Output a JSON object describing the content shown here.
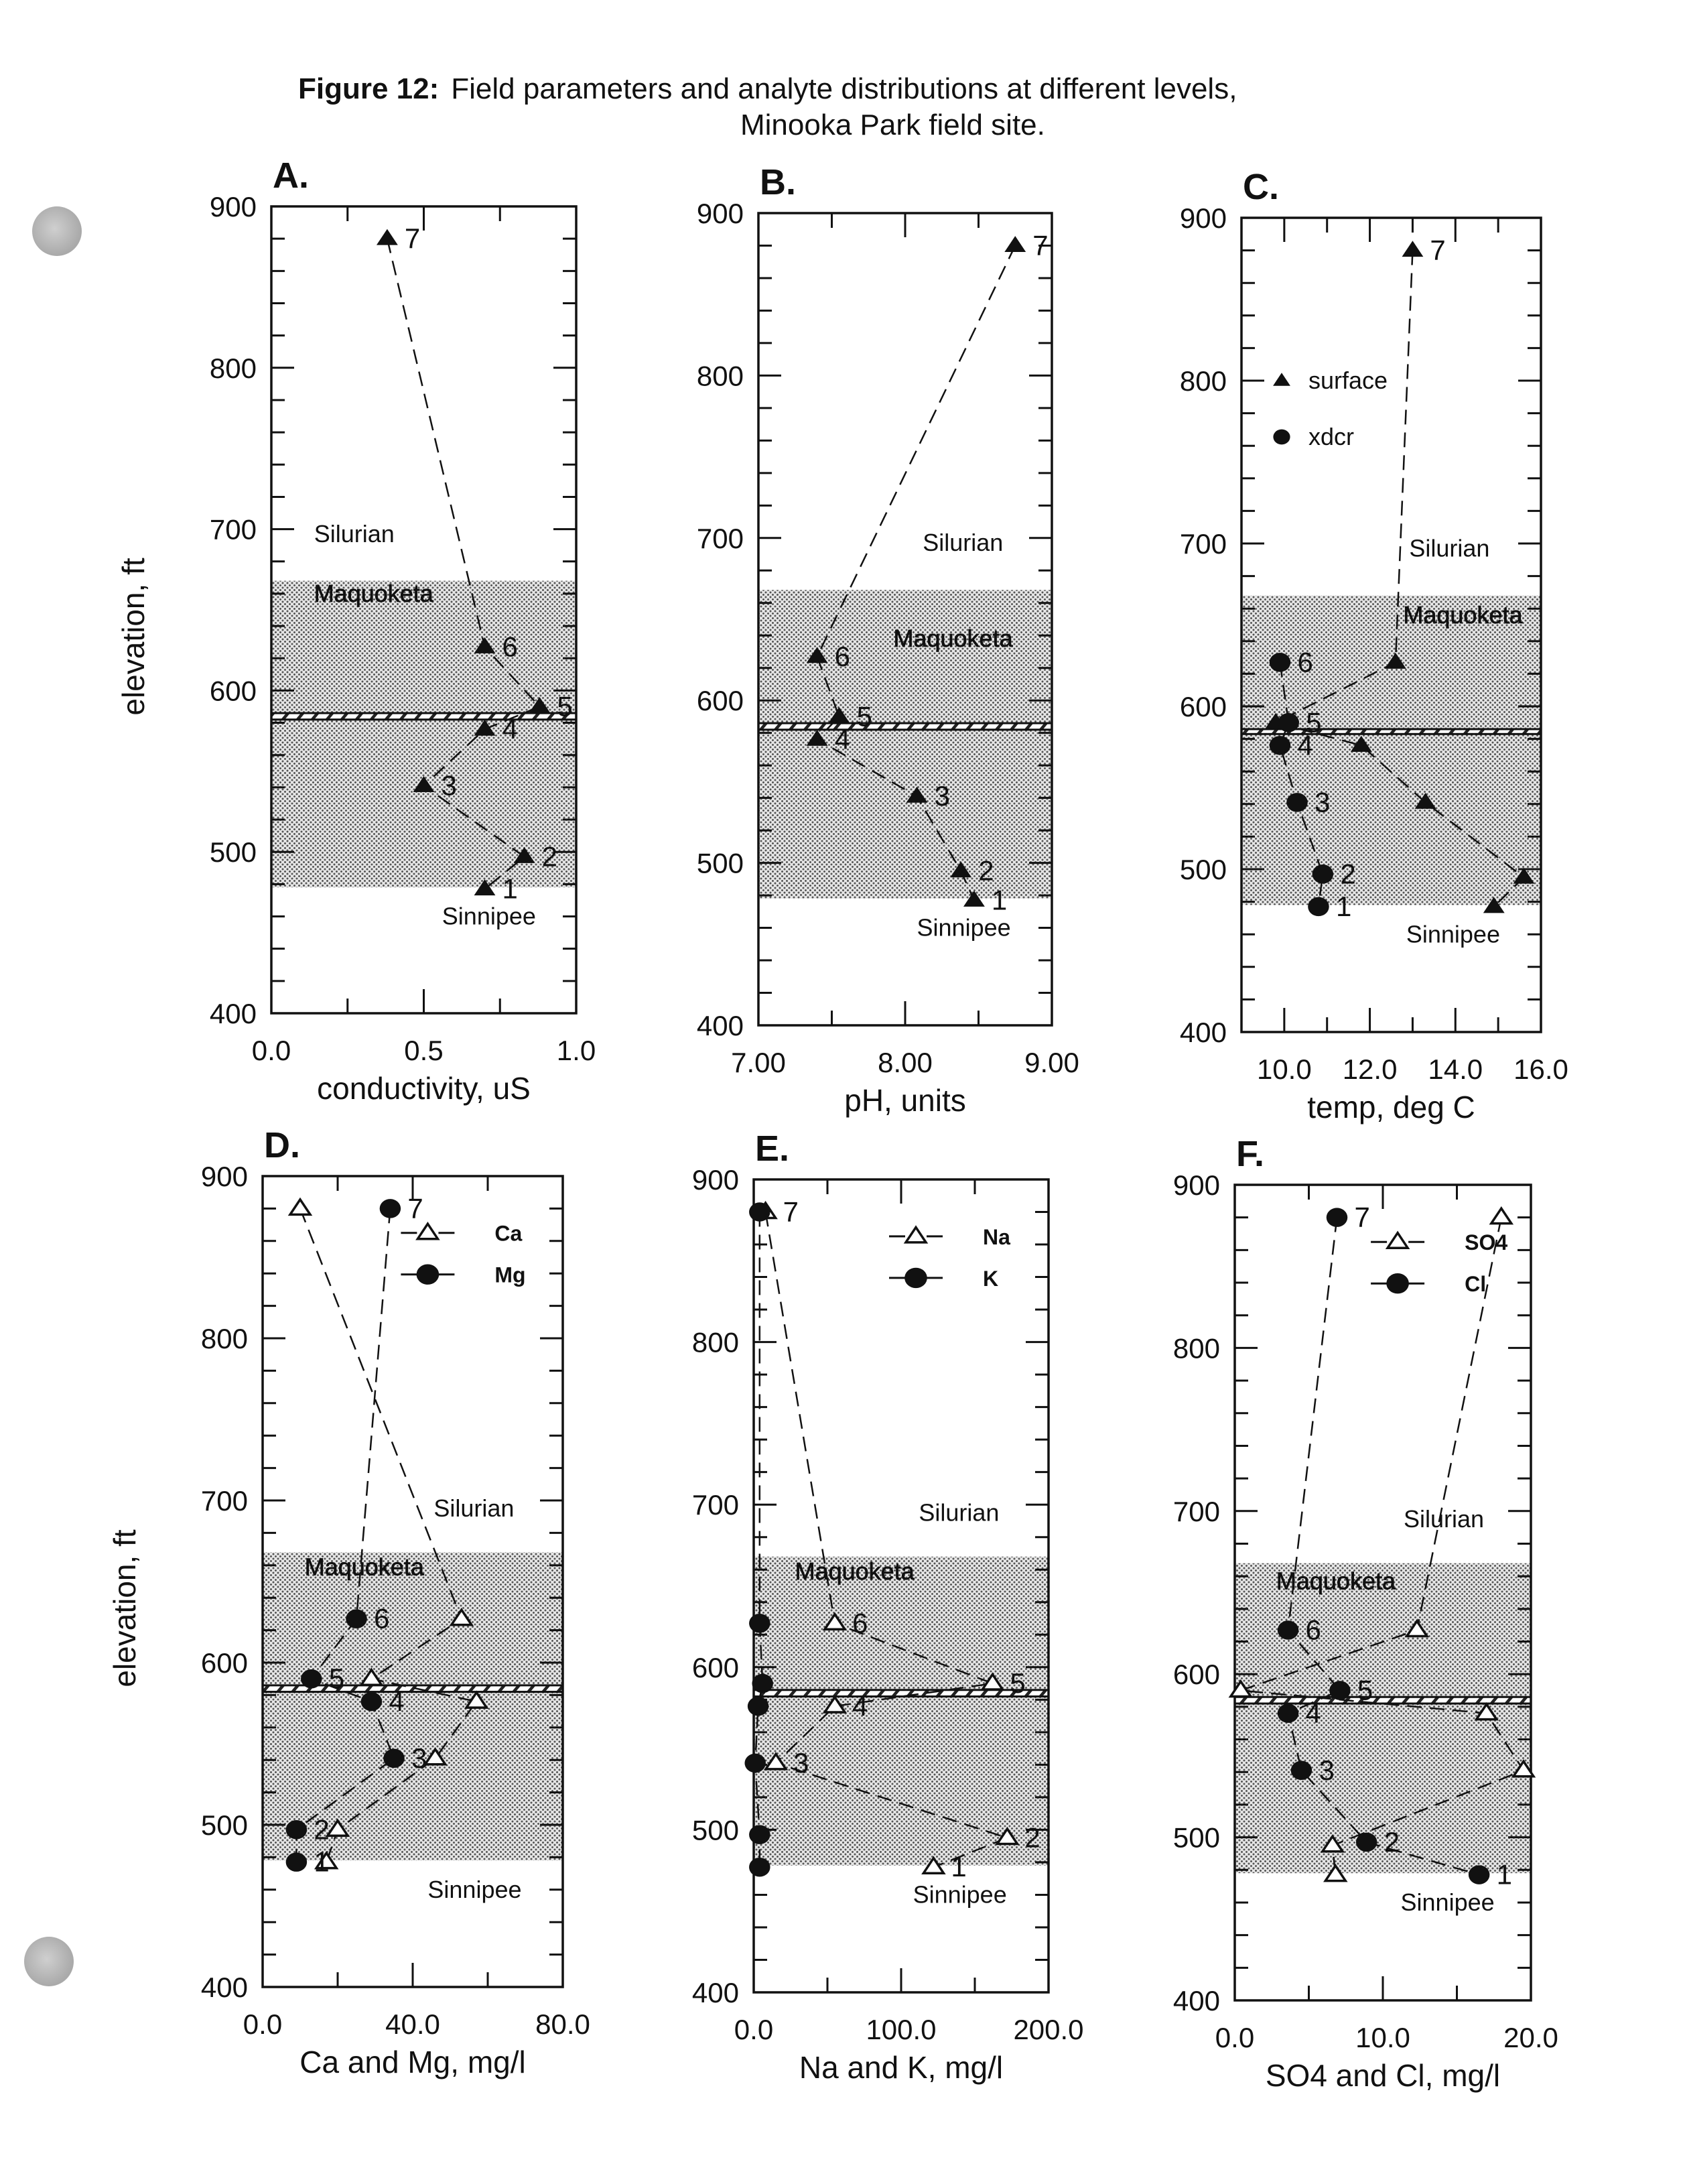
{
  "figure": {
    "title_prefix": "Figure 12:",
    "title_main": "Field parameters and analyte distributions at different levels,",
    "title_line2": "Minooka Park field site."
  },
  "colors": {
    "ink": "#111111",
    "shade": "#c8c8c8",
    "punch_hole": "#b8b8b8"
  },
  "chart_data": [
    {
      "id": "A",
      "panel_label": "A.",
      "type": "line",
      "xlabel": "conductivity, uS",
      "ylabel": "elevation, ft",
      "xlim": [
        0.0,
        1.0
      ],
      "ylim": [
        400,
        900
      ],
      "xticks": [
        0.0,
        0.5,
        1.0
      ],
      "xtick_labels": [
        "0.0",
        "0.5",
        "1.0"
      ],
      "yticks": [
        400,
        500,
        600,
        700,
        800,
        900
      ],
      "ytick_labels": [
        "400",
        "500",
        "600",
        "700",
        "800",
        "900"
      ],
      "units": [
        {
          "name": "Silurian",
          "elev": 692,
          "xfrac": 0.14
        },
        {
          "name": "Maquoketa",
          "elev": 655,
          "xfrac": 0.14,
          "shaded_text": true
        },
        {
          "name": "Sinnipee",
          "elev": 455,
          "xfrac": 0.56
        }
      ],
      "shaded_range": [
        478,
        668
      ],
      "hatch_range": [
        582,
        586
      ],
      "legend": [],
      "series": [
        {
          "name": "surface",
          "marker": "filled-triangle",
          "points": [
            {
              "label": "7",
              "x": 0.38,
              "y": 880
            },
            {
              "label": "6",
              "x": 0.7,
              "y": 627
            },
            {
              "label": "5",
              "x": 0.88,
              "y": 590
            },
            {
              "label": "4",
              "x": 0.7,
              "y": 576
            },
            {
              "label": "3",
              "x": 0.5,
              "y": 541
            },
            {
              "label": "2",
              "x": 0.83,
              "y": 497
            },
            {
              "label": "1",
              "x": 0.7,
              "y": 477
            }
          ]
        }
      ]
    },
    {
      "id": "B",
      "panel_label": "B.",
      "type": "line",
      "xlabel": "pH, units",
      "ylabel": "",
      "xlim": [
        7.0,
        9.0
      ],
      "ylim": [
        400,
        900
      ],
      "xticks": [
        7.0,
        8.0,
        9.0
      ],
      "xtick_labels": [
        "7.00",
        "8.00",
        "9.00"
      ],
      "yticks": [
        400,
        500,
        600,
        700,
        800,
        900
      ],
      "ytick_labels": [
        "400",
        "500",
        "600",
        "700",
        "800",
        "900"
      ],
      "units": [
        {
          "name": "Silurian",
          "elev": 692,
          "xfrac": 0.56
        },
        {
          "name": "Maquoketa",
          "elev": 633,
          "xfrac": 0.46,
          "shaded_text": true
        },
        {
          "name": "Sinnipee",
          "elev": 455,
          "xfrac": 0.54
        }
      ],
      "shaded_range": [
        478,
        668
      ],
      "hatch_range": [
        582,
        586
      ],
      "legend": [],
      "series": [
        {
          "name": "surface",
          "marker": "filled-triangle",
          "points": [
            {
              "label": "7",
              "x": 8.75,
              "y": 880
            },
            {
              "label": "6",
              "x": 7.4,
              "y": 627
            },
            {
              "label": "5",
              "x": 7.55,
              "y": 590
            },
            {
              "label": "4",
              "x": 7.4,
              "y": 576
            },
            {
              "label": "3",
              "x": 8.08,
              "y": 541
            },
            {
              "label": "2",
              "x": 8.38,
              "y": 495
            },
            {
              "label": "1",
              "x": 8.47,
              "y": 477
            }
          ]
        }
      ]
    },
    {
      "id": "C",
      "panel_label": "C.",
      "type": "line",
      "xlabel": "temp, deg C",
      "ylabel": "",
      "xlim": [
        9.0,
        16.0
      ],
      "ylim": [
        400,
        900
      ],
      "xticks": [
        10.0,
        12.0,
        14.0,
        16.0
      ],
      "xtick_labels": [
        "10.0",
        "12.0",
        "14.0",
        "16.0"
      ],
      "yticks": [
        400,
        500,
        600,
        700,
        800,
        900
      ],
      "ytick_labels": [
        "400",
        "500",
        "600",
        "700",
        "800",
        "900"
      ],
      "units": [
        {
          "name": "Silurian",
          "elev": 692,
          "xfrac": 0.56
        },
        {
          "name": "Maquoketa",
          "elev": 651,
          "xfrac": 0.54,
          "shaded_text": true
        },
        {
          "name": "Sinnipee",
          "elev": 455,
          "xfrac": 0.55
        }
      ],
      "shaded_range": [
        478,
        668
      ],
      "hatch_range": [
        583,
        586
      ],
      "legend": [
        {
          "name": "surface",
          "marker": "filled-triangle"
        },
        {
          "name": "xdcr",
          "marker": "filled-circle"
        }
      ],
      "series": [
        {
          "name": "surface",
          "marker": "filled-triangle",
          "points": [
            {
              "label": "7",
              "x": 13.0,
              "y": 880
            },
            {
              "label": "",
              "x": 12.6,
              "y": 627
            },
            {
              "label": "",
              "x": 9.8,
              "y": 590
            },
            {
              "label": "",
              "x": 11.8,
              "y": 576
            },
            {
              "label": "",
              "x": 13.3,
              "y": 541
            },
            {
              "label": "",
              "x": 15.6,
              "y": 495
            },
            {
              "label": "",
              "x": 14.9,
              "y": 477
            }
          ]
        },
        {
          "name": "xdcr",
          "marker": "filled-circle",
          "points": [
            {
              "label": "6",
              "x": 9.9,
              "y": 627
            },
            {
              "label": "5",
              "x": 10.1,
              "y": 590
            },
            {
              "label": "4",
              "x": 9.9,
              "y": 576
            },
            {
              "label": "3",
              "x": 10.3,
              "y": 541
            },
            {
              "label": "2",
              "x": 10.9,
              "y": 497
            },
            {
              "label": "1",
              "x": 10.8,
              "y": 477
            }
          ]
        }
      ]
    },
    {
      "id": "D",
      "panel_label": "D.",
      "type": "line",
      "xlabel": "Ca and Mg, mg/l",
      "ylabel": "elevation, ft",
      "xlim": [
        0.0,
        80.0
      ],
      "ylim": [
        400,
        900
      ],
      "xticks": [
        0.0,
        40.0,
        80.0
      ],
      "xtick_labels": [
        "0.0",
        "40.0",
        "80.0"
      ],
      "yticks": [
        400,
        500,
        600,
        700,
        800,
        900
      ],
      "ytick_labels": [
        "400",
        "500",
        "600",
        "700",
        "800",
        "900"
      ],
      "units": [
        {
          "name": "Silurian",
          "elev": 690,
          "xfrac": 0.57
        },
        {
          "name": "Maquoketa",
          "elev": 654,
          "xfrac": 0.14,
          "shaded_text": true
        },
        {
          "name": "Sinnipee",
          "elev": 455,
          "xfrac": 0.55
        }
      ],
      "shaded_range": [
        478,
        668
      ],
      "hatch_range": [
        582,
        586
      ],
      "legend": [
        {
          "name": "Ca",
          "marker": "open-triangle"
        },
        {
          "name": "Mg",
          "marker": "filled-circle"
        }
      ],
      "series": [
        {
          "name": "Ca",
          "marker": "open-triangle",
          "points": [
            {
              "label": "",
              "x": 10,
              "y": 880
            },
            {
              "label": "",
              "x": 53,
              "y": 627
            },
            {
              "label": "",
              "x": 29,
              "y": 590
            },
            {
              "label": "",
              "x": 57,
              "y": 576
            },
            {
              "label": "",
              "x": 46,
              "y": 541
            },
            {
              "label": "",
              "x": 20,
              "y": 497
            },
            {
              "label": "",
              "x": 17,
              "y": 477
            }
          ]
        },
        {
          "name": "Mg",
          "marker": "filled-circle",
          "points": [
            {
              "label": "7",
              "x": 34,
              "y": 880
            },
            {
              "label": "6",
              "x": 25,
              "y": 627
            },
            {
              "label": "5",
              "x": 13,
              "y": 590
            },
            {
              "label": "4",
              "x": 29,
              "y": 576
            },
            {
              "label": "3",
              "x": 35,
              "y": 541
            },
            {
              "label": "2",
              "x": 9,
              "y": 497
            },
            {
              "label": "1",
              "x": 9,
              "y": 477
            }
          ]
        }
      ]
    },
    {
      "id": "E",
      "panel_label": "E.",
      "type": "line",
      "xlabel": "Na and K, mg/l",
      "ylabel": "",
      "xlim": [
        0.0,
        200.0
      ],
      "ylim": [
        400,
        900
      ],
      "xticks": [
        0.0,
        100.0,
        200.0
      ],
      "xtick_labels": [
        "0.0",
        "100.0",
        "200.0"
      ],
      "yticks": [
        400,
        500,
        600,
        700,
        800,
        900
      ],
      "ytick_labels": [
        "400",
        "500",
        "600",
        "700",
        "800",
        "900"
      ],
      "units": [
        {
          "name": "Silurian",
          "elev": 690,
          "xfrac": 0.56
        },
        {
          "name": "Maquoketa",
          "elev": 654,
          "xfrac": 0.14,
          "shaded_text": true
        },
        {
          "name": "Sinnipee",
          "elev": 455,
          "xfrac": 0.54
        }
      ],
      "shaded_range": [
        478,
        668
      ],
      "hatch_range": [
        582,
        586
      ],
      "legend": [
        {
          "name": "Na",
          "marker": "open-triangle"
        },
        {
          "name": "K",
          "marker": "filled-circle"
        }
      ],
      "series": [
        {
          "name": "Na",
          "marker": "open-triangle",
          "points": [
            {
              "label": "7",
              "x": 8,
              "y": 880
            },
            {
              "label": "6",
              "x": 55,
              "y": 627
            },
            {
              "label": "5",
              "x": 162,
              "y": 590
            },
            {
              "label": "4",
              "x": 55,
              "y": 576
            },
            {
              "label": "3",
              "x": 15,
              "y": 541
            },
            {
              "label": "2",
              "x": 172,
              "y": 495
            },
            {
              "label": "1",
              "x": 122,
              "y": 477
            }
          ]
        },
        {
          "name": "K",
          "marker": "filled-circle",
          "points": [
            {
              "label": "",
              "x": 4,
              "y": 880
            },
            {
              "label": "",
              "x": 4,
              "y": 627
            },
            {
              "label": "",
              "x": 6,
              "y": 590
            },
            {
              "label": "",
              "x": 3,
              "y": 576
            },
            {
              "label": "",
              "x": 1,
              "y": 541
            },
            {
              "label": "",
              "x": 4,
              "y": 497
            },
            {
              "label": "",
              "x": 4,
              "y": 477
            }
          ]
        }
      ]
    },
    {
      "id": "F",
      "panel_label": "F.",
      "type": "line",
      "xlabel": "SO4 and Cl, mg/l",
      "ylabel": "",
      "xlim": [
        0.0,
        20.0
      ],
      "ylim": [
        400,
        900
      ],
      "xticks": [
        0.0,
        10.0,
        20.0
      ],
      "xtick_labels": [
        "0.0",
        "10.0",
        "20.0"
      ],
      "yticks": [
        400,
        500,
        600,
        700,
        800,
        900
      ],
      "ytick_labels": [
        "400",
        "500",
        "600",
        "700",
        "800",
        "900"
      ],
      "units": [
        {
          "name": "Silurian",
          "elev": 690,
          "xfrac": 0.57
        },
        {
          "name": "Maquoketa",
          "elev": 652,
          "xfrac": 0.14,
          "shaded_text": true
        },
        {
          "name": "Sinnipee",
          "elev": 455,
          "xfrac": 0.56
        }
      ],
      "shaded_range": [
        478,
        668
      ],
      "hatch_range": [
        582,
        586
      ],
      "legend": [
        {
          "name": "SO4",
          "marker": "open-triangle"
        },
        {
          "name": "Cl",
          "marker": "filled-circle"
        }
      ],
      "series": [
        {
          "name": "SO4",
          "marker": "open-triangle",
          "points": [
            {
              "label": "",
              "x": 18.0,
              "y": 880
            },
            {
              "label": "",
              "x": 12.3,
              "y": 627
            },
            {
              "label": "",
              "x": 0.4,
              "y": 590
            },
            {
              "label": "",
              "x": 17.0,
              "y": 576
            },
            {
              "label": "",
              "x": 19.5,
              "y": 541
            },
            {
              "label": "",
              "x": 6.6,
              "y": 495
            },
            {
              "label": "",
              "x": 6.8,
              "y": 477
            }
          ]
        },
        {
          "name": "Cl",
          "marker": "filled-circle",
          "points": [
            {
              "label": "7",
              "x": 6.9,
              "y": 880
            },
            {
              "label": "6",
              "x": 3.6,
              "y": 627
            },
            {
              "label": "5",
              "x": 7.1,
              "y": 590
            },
            {
              "label": "4",
              "x": 3.6,
              "y": 576
            },
            {
              "label": "3",
              "x": 4.5,
              "y": 541
            },
            {
              "label": "2",
              "x": 8.9,
              "y": 497
            },
            {
              "label": "1",
              "x": 16.5,
              "y": 477
            }
          ]
        }
      ]
    }
  ]
}
